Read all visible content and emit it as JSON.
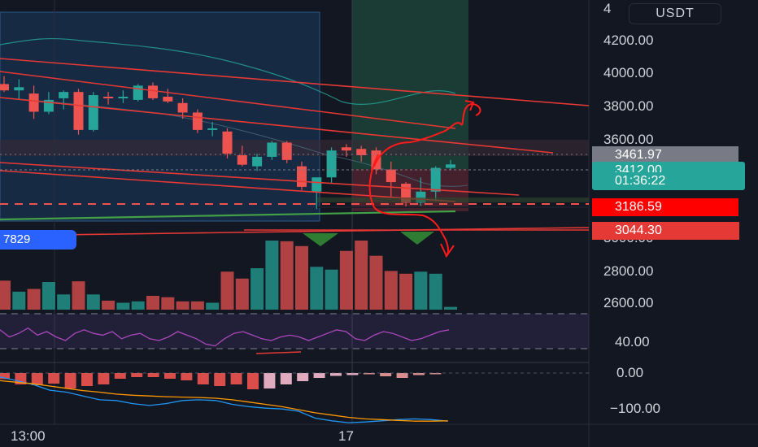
{
  "currency": "USDT",
  "chart_data": {
    "type": "candlestick",
    "ylim": [
      2540,
      4400
    ],
    "y_ticks": [
      "4",
      "4200.00",
      "4000.00",
      "3800.00",
      "3600.00",
      "3000.00",
      "2800.00",
      "2600.00"
    ],
    "y_tick_values": [
      4400,
      4200,
      4000,
      3800,
      3600,
      3000,
      2800,
      2600
    ],
    "x_ticks": [
      "13:00",
      "17"
    ],
    "x_tick_index": [
      3,
      21
    ],
    "candles": [
      {
        "o": 3920,
        "h": 3970,
        "l": 3870,
        "c": 3880
      },
      {
        "o": 3880,
        "h": 3950,
        "l": 3820,
        "c": 3900
      },
      {
        "o": 3860,
        "h": 3910,
        "l": 3700,
        "c": 3745
      },
      {
        "o": 3745,
        "h": 3870,
        "l": 3730,
        "c": 3820
      },
      {
        "o": 3830,
        "h": 3880,
        "l": 3760,
        "c": 3870
      },
      {
        "o": 3870,
        "h": 3890,
        "l": 3600,
        "c": 3630
      },
      {
        "o": 3630,
        "h": 3870,
        "l": 3620,
        "c": 3850
      },
      {
        "o": 3840,
        "h": 3870,
        "l": 3790,
        "c": 3830
      },
      {
        "o": 3830,
        "h": 3880,
        "l": 3800,
        "c": 3840
      },
      {
        "o": 3820,
        "h": 3920,
        "l": 3810,
        "c": 3910
      },
      {
        "o": 3910,
        "h": 3930,
        "l": 3820,
        "c": 3830
      },
      {
        "o": 3840,
        "h": 3890,
        "l": 3800,
        "c": 3810
      },
      {
        "o": 3800,
        "h": 3830,
        "l": 3700,
        "c": 3740
      },
      {
        "o": 3740,
        "h": 3760,
        "l": 3610,
        "c": 3630
      },
      {
        "o": 3630,
        "h": 3680,
        "l": 3590,
        "c": 3640
      },
      {
        "o": 3620,
        "h": 3640,
        "l": 3450,
        "c": 3480
      },
      {
        "o": 3470,
        "h": 3530,
        "l": 3400,
        "c": 3410
      },
      {
        "o": 3400,
        "h": 3480,
        "l": 3370,
        "c": 3460
      },
      {
        "o": 3460,
        "h": 3560,
        "l": 3440,
        "c": 3550
      },
      {
        "o": 3550,
        "h": 3560,
        "l": 3420,
        "c": 3440
      },
      {
        "o": 3400,
        "h": 3430,
        "l": 3250,
        "c": 3270
      },
      {
        "o": 3240,
        "h": 3320,
        "l": 3130,
        "c": 3330
      },
      {
        "o": 3330,
        "h": 3520,
        "l": 3290,
        "c": 3500
      },
      {
        "o": 3520,
        "h": 3540,
        "l": 3460,
        "c": 3500
      },
      {
        "o": 3510,
        "h": 3530,
        "l": 3430,
        "c": 3470
      },
      {
        "o": 3500,
        "h": 3520,
        "l": 3350,
        "c": 3380
      },
      {
        "o": 3380,
        "h": 3430,
        "l": 3210,
        "c": 3300
      },
      {
        "o": 3290,
        "h": 3300,
        "l": 3140,
        "c": 3170
      },
      {
        "o": 3170,
        "h": 3330,
        "l": 3150,
        "c": 3240
      },
      {
        "o": 3240,
        "h": 3400,
        "l": 3180,
        "c": 3390
      },
      {
        "o": 3390,
        "h": 3440,
        "l": 3380,
        "c": 3412
      }
    ],
    "volume": [
      0.42,
      0.26,
      0.3,
      0.4,
      0.22,
      0.41,
      0.22,
      0.13,
      0.1,
      0.12,
      0.2,
      0.18,
      0.12,
      0.12,
      0.1,
      0.55,
      0.45,
      0.6,
      1.0,
      0.99,
      0.92,
      0.62,
      0.58,
      0.85,
      1.0,
      0.78,
      0.56,
      0.52,
      0.55,
      0.52,
      0.04
    ],
    "rsi": {
      "ticks": [
        "40.00"
      ],
      "values": [
        46,
        42,
        44,
        47,
        43,
        45,
        42,
        40,
        44,
        46,
        44,
        43,
        45,
        41,
        43,
        44,
        41,
        40,
        42,
        45,
        43,
        41,
        38,
        37,
        41,
        44,
        45,
        43,
        41,
        40,
        42,
        43,
        42,
        40,
        42,
        44,
        46,
        45,
        41,
        40,
        43,
        45,
        44,
        42,
        40,
        41,
        43,
        45,
        46
      ]
    },
    "macd": {
      "ticks": [
        "0.00",
        "−100.00"
      ],
      "histogram": [
        -15,
        -28,
        -30,
        -26,
        -38,
        -32,
        -28,
        -14,
        -10,
        -10,
        -14,
        -18,
        -28,
        -32,
        -28,
        -40,
        -38,
        -28,
        -20,
        -12,
        -7,
        -5,
        -3,
        -8,
        -12,
        -5,
        -3
      ],
      "macd_line": [
        -10,
        -20,
        -30,
        -45,
        -50,
        -60,
        -70,
        -72,
        -80,
        -85,
        -80,
        -72,
        -70,
        -72,
        -82,
        -88,
        -92,
        -94,
        -100,
        -118,
        -125,
        -130,
        -128,
        -125,
        -122,
        -120,
        -122,
        -126
      ],
      "signal_line": [
        -20,
        -24,
        -28,
        -34,
        -40,
        -46,
        -50,
        -55,
        -58,
        -60,
        -62,
        -63,
        -64,
        -66,
        -70,
        -76,
        -82,
        -88,
        -96,
        -104,
        -110,
        -116,
        -120,
        -122,
        -124,
        -126,
        -126,
        -125
      ]
    },
    "price_labels": [
      {
        "text": "3461.97",
        "value": 3461.97,
        "color": "#787b86"
      },
      {
        "text": "3412.00",
        "value": 3412.0,
        "color": "#26a69a"
      },
      {
        "text": "01:36:22",
        "value": null,
        "color": "#26a69a"
      },
      {
        "text": "3186.59",
        "value": 3186.59,
        "color": "#ff0000"
      },
      {
        "text": "3044.30",
        "value": 3044.3,
        "color": "#e53935"
      }
    ],
    "left_pill": "7829"
  }
}
